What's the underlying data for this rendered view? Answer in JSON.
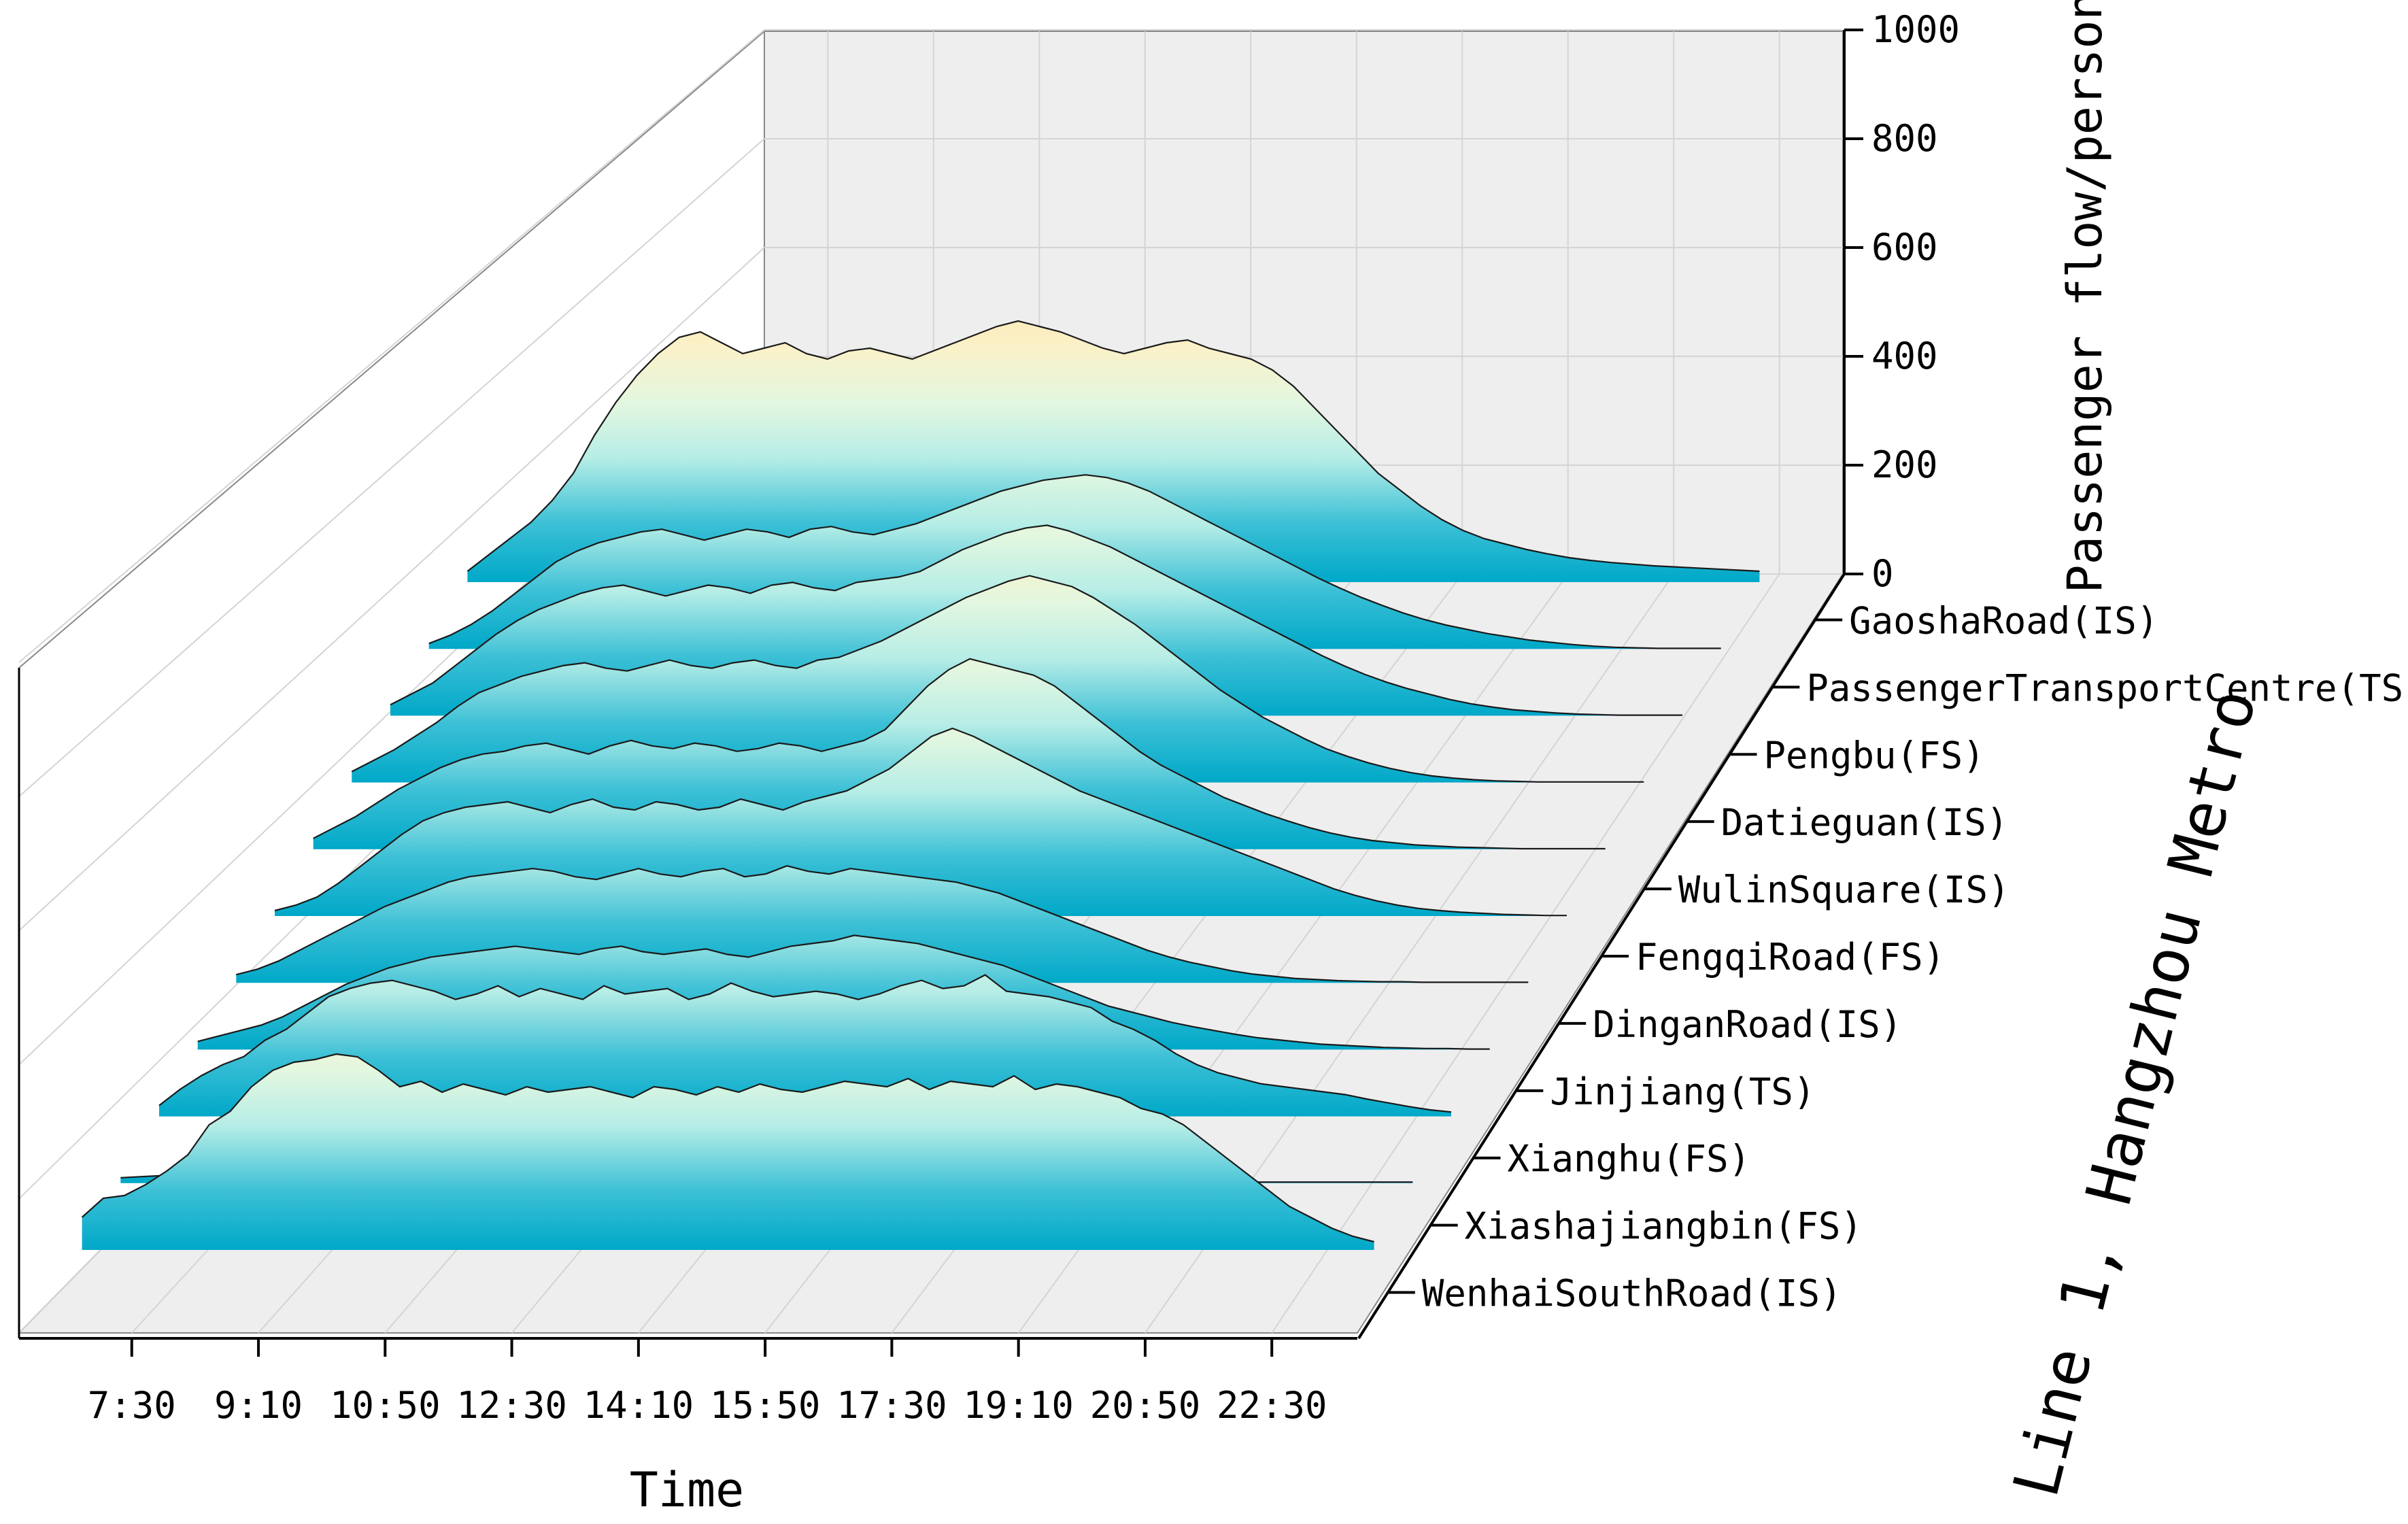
{
  "chart_data": {
    "type": "area",
    "title": "",
    "xlabel": "Time",
    "zlabel": "Passenger flow/person",
    "series_axis_title": "Line 1, Hangzhou Metro",
    "z_ticks": [
      "0",
      "200",
      "400",
      "600",
      "800",
      "1000"
    ],
    "zlim": [
      0,
      1000
    ],
    "x_ticks": [
      "7:30",
      "9:10",
      "10:50",
      "12:30",
      "14:10",
      "15:50",
      "17:30",
      "19:10",
      "20:50",
      "22:30"
    ],
    "x_range_minutes": [
      390,
      1410
    ],
    "series": [
      {
        "name": "WenhaiSouthRoad(IS)",
        "values": [
          60,
          95,
          100,
          120,
          145,
          175,
          230,
          255,
          300,
          330,
          345,
          350,
          360,
          355,
          330,
          300,
          310,
          290,
          305,
          295,
          285,
          300,
          290,
          295,
          300,
          290,
          280,
          300,
          295,
          285,
          300,
          290,
          305,
          295,
          290,
          300,
          310,
          305,
          300,
          315,
          295,
          310,
          305,
          300,
          320,
          295,
          305,
          300,
          290,
          280,
          260,
          250,
          230,
          200,
          170,
          140,
          110,
          80,
          60,
          40,
          25,
          15
        ]
      },
      {
        "name": "Xiashajiangbin(FS)",
        "values": [
          10,
          12,
          14,
          15,
          15,
          14,
          14,
          12,
          11,
          10,
          9,
          10,
          12,
          14,
          16,
          15,
          14,
          13,
          12,
          10,
          9,
          8,
          9,
          10,
          12,
          14,
          16,
          18,
          20,
          18,
          16,
          14,
          12,
          10,
          8,
          7,
          6,
          5,
          5,
          4,
          4,
          3,
          3,
          3,
          3,
          3,
          3,
          2,
          2,
          2,
          2,
          2,
          2,
          2,
          2,
          2,
          2,
          2,
          2,
          2,
          2,
          2
        ]
      },
      {
        "name": "Xianghu(FS)",
        "values": [
          20,
          50,
          75,
          95,
          110,
          140,
          160,
          190,
          220,
          235,
          245,
          250,
          240,
          230,
          215,
          225,
          240,
          220,
          235,
          225,
          215,
          240,
          225,
          230,
          235,
          215,
          225,
          245,
          230,
          220,
          225,
          230,
          225,
          215,
          225,
          240,
          250,
          235,
          240,
          260,
          230,
          225,
          220,
          210,
          200,
          175,
          160,
          140,
          115,
          95,
          80,
          70,
          60,
          55,
          50,
          45,
          40,
          32,
          25,
          18,
          12,
          8
        ]
      },
      {
        "name": "Jinjiang(TS)",
        "values": [
          15,
          25,
          35,
          45,
          60,
          80,
          100,
          120,
          135,
          150,
          160,
          170,
          175,
          180,
          185,
          190,
          185,
          180,
          175,
          185,
          190,
          180,
          175,
          180,
          185,
          175,
          170,
          180,
          190,
          195,
          200,
          210,
          205,
          200,
          195,
          185,
          175,
          165,
          155,
          140,
          125,
          110,
          95,
          80,
          70,
          60,
          50,
          42,
          35,
          28,
          22,
          18,
          14,
          10,
          8,
          6,
          4,
          3,
          2,
          2,
          1,
          1
        ]
      },
      {
        "name": "DinganRoad(IS)",
        "values": [
          15,
          25,
          40,
          60,
          80,
          100,
          120,
          140,
          155,
          170,
          185,
          195,
          200,
          205,
          210,
          205,
          195,
          190,
          200,
          210,
          200,
          195,
          205,
          210,
          195,
          200,
          215,
          205,
          200,
          210,
          205,
          200,
          195,
          190,
          185,
          175,
          165,
          150,
          135,
          120,
          105,
          90,
          75,
          60,
          48,
          38,
          30,
          22,
          16,
          12,
          8,
          6,
          4,
          3,
          2,
          2,
          1,
          1,
          1,
          1,
          1,
          1
        ]
      },
      {
        "name": "FengqiRoad(FS)",
        "values": [
          10,
          20,
          35,
          60,
          90,
          120,
          150,
          175,
          190,
          200,
          205,
          210,
          200,
          190,
          205,
          215,
          200,
          195,
          210,
          205,
          195,
          200,
          215,
          205,
          195,
          210,
          220,
          230,
          250,
          270,
          300,
          330,
          345,
          330,
          310,
          290,
          270,
          250,
          230,
          215,
          200,
          185,
          170,
          155,
          140,
          125,
          110,
          95,
          80,
          65,
          50,
          38,
          28,
          20,
          14,
          10,
          7,
          5,
          3,
          2,
          1,
          1
        ]
      },
      {
        "name": "WulinSquare(IS)",
        "values": [
          20,
          40,
          60,
          85,
          110,
          130,
          150,
          165,
          175,
          180,
          190,
          195,
          185,
          175,
          190,
          200,
          190,
          185,
          195,
          190,
          180,
          185,
          195,
          190,
          180,
          190,
          200,
          220,
          260,
          300,
          330,
          350,
          340,
          330,
          320,
          300,
          270,
          240,
          210,
          180,
          155,
          135,
          115,
          95,
          80,
          65,
          52,
          40,
          30,
          22,
          16,
          12,
          8,
          6,
          4,
          3,
          2,
          1,
          1,
          1,
          1,
          1
        ]
      },
      {
        "name": "Datieguan(IS)",
        "values": [
          20,
          40,
          60,
          85,
          110,
          140,
          165,
          180,
          195,
          205,
          215,
          220,
          210,
          205,
          215,
          225,
          215,
          210,
          220,
          225,
          215,
          210,
          225,
          230,
          245,
          260,
          280,
          300,
          320,
          340,
          355,
          370,
          380,
          370,
          360,
          340,
          315,
          290,
          260,
          230,
          200,
          170,
          145,
          120,
          100,
          80,
          62,
          48,
          36,
          26,
          18,
          12,
          8,
          5,
          3,
          2,
          1,
          1,
          1,
          1,
          1,
          1
        ]
      },
      {
        "name": "Pengbu(FS)",
        "values": [
          20,
          40,
          60,
          90,
          120,
          150,
          175,
          195,
          210,
          225,
          235,
          240,
          230,
          220,
          230,
          240,
          235,
          225,
          240,
          245,
          235,
          230,
          245,
          250,
          255,
          265,
          285,
          305,
          320,
          335,
          345,
          350,
          340,
          325,
          310,
          290,
          270,
          250,
          230,
          210,
          190,
          170,
          150,
          130,
          110,
          92,
          76,
          62,
          50,
          40,
          30,
          22,
          16,
          11,
          8,
          5,
          3,
          2,
          1,
          1,
          1,
          1
        ]
      },
      {
        "name": "PassengerTransportCentre(TS)",
        "values": [
          10,
          25,
          45,
          70,
          100,
          130,
          160,
          180,
          195,
          205,
          215,
          220,
          210,
          200,
          210,
          220,
          215,
          205,
          220,
          225,
          215,
          210,
          220,
          230,
          245,
          260,
          275,
          290,
          300,
          310,
          315,
          320,
          315,
          305,
          290,
          270,
          250,
          230,
          210,
          190,
          170,
          150,
          130,
          112,
          95,
          80,
          66,
          54,
          44,
          36,
          28,
          22,
          16,
          12,
          8,
          5,
          3,
          2,
          1,
          1,
          1,
          1
        ]
      },
      {
        "name": "GaoshaRoad(IS)",
        "values": [
          20,
          50,
          80,
          110,
          150,
          200,
          270,
          330,
          380,
          420,
          450,
          460,
          440,
          420,
          430,
          440,
          420,
          410,
          425,
          430,
          420,
          410,
          425,
          440,
          455,
          470,
          480,
          470,
          460,
          445,
          430,
          420,
          430,
          440,
          445,
          430,
          420,
          410,
          390,
          360,
          320,
          280,
          240,
          200,
          170,
          140,
          115,
          95,
          80,
          70,
          60,
          52,
          45,
          40,
          36,
          33,
          30,
          28,
          26,
          24,
          22,
          20
        ]
      }
    ]
  },
  "colors": {
    "fill_bottom": "#00a8c8",
    "fill_mid": "#c6f2ea",
    "fill_top": "#fde8b4",
    "back_wall": "#eeeeee",
    "grid": "#d4d4d4"
  }
}
